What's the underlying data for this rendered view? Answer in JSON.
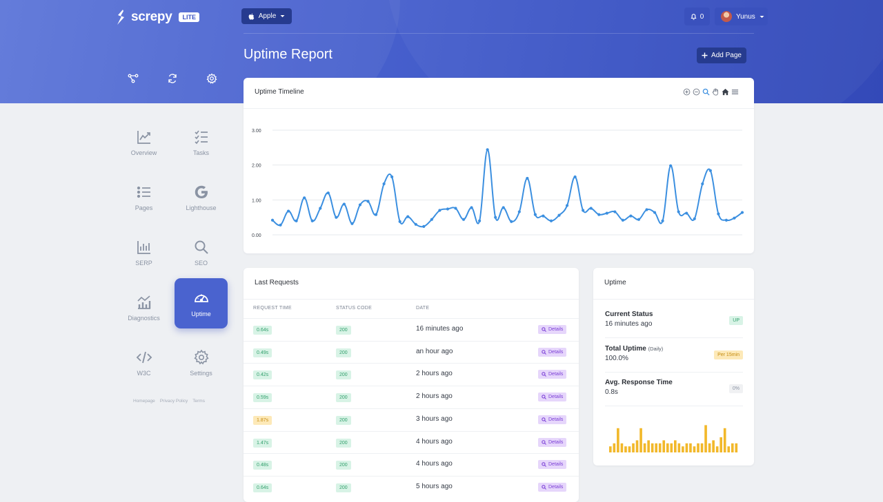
{
  "brand": {
    "name": "screpy",
    "edition": "LITE"
  },
  "site_select": {
    "value": "Apple",
    "icon": "apple-icon"
  },
  "notifications": {
    "count": "0"
  },
  "user": {
    "name": "Yunus"
  },
  "page": {
    "title": "Uptime Report",
    "add_button": "Add Page"
  },
  "top_icons": [
    "share-nodes-icon",
    "refresh-icon",
    "gear-icon"
  ],
  "nav": [
    {
      "id": "overview",
      "label": "Overview",
      "icon": "trend-chart-icon",
      "active": false
    },
    {
      "id": "tasks",
      "label": "Tasks",
      "icon": "checklist-icon",
      "active": false
    },
    {
      "id": "pages",
      "label": "Pages",
      "icon": "list-icon",
      "active": false
    },
    {
      "id": "lighthouse",
      "label": "Lighthouse",
      "icon": "google-icon",
      "active": false
    },
    {
      "id": "serp",
      "label": "SERP",
      "icon": "bar-chart-icon",
      "active": false
    },
    {
      "id": "seo",
      "label": "SEO",
      "icon": "search-icon",
      "active": false
    },
    {
      "id": "diagnostics",
      "label": "Diagnostics",
      "icon": "diagnostics-icon",
      "active": false
    },
    {
      "id": "uptime",
      "label": "Uptime",
      "icon": "speedometer-icon",
      "active": true
    },
    {
      "id": "w3c",
      "label": "W3C",
      "icon": "code-icon",
      "active": false
    },
    {
      "id": "settings",
      "label": "Settings",
      "icon": "gear-icon",
      "active": false
    }
  ],
  "footer_links": [
    "Homepage",
    "Privacy Policy",
    "Terms"
  ],
  "timeline": {
    "title": "Uptime Timeline",
    "toolbar": [
      "zoom-in-icon",
      "zoom-out-icon",
      "magnifier-icon",
      "pan-hand-icon",
      "home-icon",
      "menu-icon"
    ]
  },
  "chart_data": {
    "type": "line",
    "title": "Uptime Timeline",
    "xlabel": "",
    "ylabel": "",
    "yticks": [
      "0.00",
      "1.00",
      "2.00",
      "3.00"
    ],
    "ylim": [
      0,
      3
    ],
    "grid": true,
    "color": "#3b8fe0",
    "values": [
      0.42,
      0.28,
      0.68,
      0.4,
      1.06,
      0.4,
      0.76,
      1.2,
      0.5,
      0.88,
      0.32,
      0.86,
      0.96,
      0.58,
      1.46,
      1.66,
      0.38,
      0.52,
      0.3,
      0.24,
      0.44,
      0.7,
      0.74,
      0.76,
      0.44,
      0.78,
      0.4,
      2.44,
      0.5,
      0.78,
      0.38,
      0.66,
      1.62,
      0.58,
      0.54,
      0.4,
      0.56,
      0.84,
      1.66,
      0.7,
      0.76,
      0.58,
      0.62,
      0.66,
      0.42,
      0.54,
      0.44,
      0.72,
      0.64,
      0.4,
      1.98,
      0.66,
      0.62,
      0.46,
      1.46,
      1.84,
      0.6,
      0.42,
      0.48,
      0.64
    ]
  },
  "requests": {
    "title": "Last Requests",
    "columns": [
      "REQUEST TIME",
      "STATUS CODE",
      "DATE"
    ],
    "details_label": "Details",
    "rows": [
      {
        "time": "0.64s",
        "status": "200",
        "date": "16 minutes ago",
        "warn": false
      },
      {
        "time": "0.49s",
        "status": "200",
        "date": "an hour ago",
        "warn": false
      },
      {
        "time": "0.42s",
        "status": "200",
        "date": "2 hours ago",
        "warn": false
      },
      {
        "time": "0.59s",
        "status": "200",
        "date": "2 hours ago",
        "warn": false
      },
      {
        "time": "1.87s",
        "status": "200",
        "date": "3 hours ago",
        "warn": true
      },
      {
        "time": "1.47s",
        "status": "200",
        "date": "4 hours ago",
        "warn": false
      },
      {
        "time": "0.48s",
        "status": "200",
        "date": "4 hours ago",
        "warn": false
      },
      {
        "time": "0.64s",
        "status": "200",
        "date": "5 hours ago",
        "warn": false
      }
    ]
  },
  "uptime": {
    "title": "Uptime",
    "current_status": {
      "label": "Current Status",
      "value": "16 minutes ago",
      "badge": "UP"
    },
    "total_uptime": {
      "label": "Total Uptime",
      "qualifier": "(Daily)",
      "value": "100.0%",
      "badge": "Per 15min"
    },
    "avg_response": {
      "label": "Avg. Response Time",
      "value": "0.8s",
      "badge": "0%"
    },
    "mini_chart": {
      "type": "bar",
      "color": "#f2b82a",
      "values": [
        0.2,
        0.3,
        0.8,
        0.3,
        0.2,
        0.2,
        0.3,
        0.4,
        0.8,
        0.3,
        0.4,
        0.3,
        0.3,
        0.3,
        0.4,
        0.3,
        0.3,
        0.4,
        0.3,
        0.2,
        0.3,
        0.3,
        0.2,
        0.3,
        0.3,
        0.9,
        0.3,
        0.4,
        0.2,
        0.5,
        0.8,
        0.2,
        0.3,
        0.3
      ]
    }
  }
}
